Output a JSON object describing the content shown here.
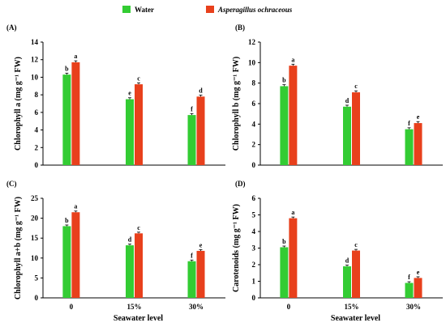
{
  "legend": [
    {
      "name": "Water",
      "color": "#33cc33",
      "italic": false
    },
    {
      "name": "Asperagillus  ochraceous",
      "color": "#e8401c",
      "italic": true
    }
  ],
  "chart_data": [
    {
      "type": "bar",
      "panel": "(A)",
      "ylabel": "Chlorophyll a (mg g⁻¹ FW)",
      "xlabel": "",
      "categories": [
        "0",
        "15%",
        "30%"
      ],
      "ylim": [
        0,
        14
      ],
      "yticks": [
        0,
        2,
        4,
        6,
        8,
        10,
        12,
        14
      ],
      "show_xticklabels": false,
      "series": [
        {
          "name": "Water",
          "values": [
            10.3,
            7.5,
            5.7
          ],
          "labels": [
            "b",
            "e",
            "f"
          ]
        },
        {
          "name": "Asperagillus  ochraceous",
          "values": [
            11.7,
            9.2,
            7.8
          ],
          "labels": [
            "a",
            "c",
            "d"
          ]
        }
      ]
    },
    {
      "type": "bar",
      "panel": "(B)",
      "ylabel": "Chlorophyll b (mg g⁻¹ FW)",
      "xlabel": "",
      "categories": [
        "0",
        "15%",
        "30%"
      ],
      "ylim": [
        0,
        12
      ],
      "yticks": [
        0,
        2,
        4,
        6,
        8,
        10,
        12
      ],
      "show_xticklabels": false,
      "series": [
        {
          "name": "Water",
          "values": [
            7.7,
            5.7,
            3.5
          ],
          "labels": [
            "b",
            "d",
            "f"
          ]
        },
        {
          "name": "Asperagillus  ochraceous",
          "values": [
            9.7,
            7.1,
            4.1
          ],
          "labels": [
            "a",
            "c",
            "e"
          ]
        }
      ]
    },
    {
      "type": "bar",
      "panel": "(C)",
      "ylabel": "Chlorophyll a+b (mg g⁻¹ FW)",
      "xlabel": "Seawater level",
      "categories": [
        "0",
        "15%",
        "30%"
      ],
      "ylim": [
        0,
        25
      ],
      "yticks": [
        0,
        5,
        10,
        15,
        20,
        25
      ],
      "show_xticklabels": true,
      "series": [
        {
          "name": "Water",
          "values": [
            18.0,
            13.2,
            9.2
          ],
          "labels": [
            "b",
            "d",
            "f"
          ]
        },
        {
          "name": "Asperagillus  ochraceous",
          "values": [
            21.5,
            16.2,
            11.8
          ],
          "labels": [
            "a",
            "c",
            "e"
          ]
        }
      ]
    },
    {
      "type": "bar",
      "panel": "(D)",
      "ylabel": "Carotenoids (mg g⁻¹ FW)",
      "xlabel": "Seawater level",
      "categories": [
        "0",
        "15%",
        "30%"
      ],
      "ylim": [
        0,
        6
      ],
      "yticks": [
        0,
        1,
        2,
        3,
        4,
        5,
        6
      ],
      "show_xticklabels": true,
      "series": [
        {
          "name": "Water",
          "values": [
            3.05,
            1.9,
            0.9
          ],
          "labels": [
            "b",
            "d",
            "f"
          ]
        },
        {
          "name": "Asperagillus  ochraceous",
          "values": [
            4.8,
            2.85,
            1.2
          ],
          "labels": [
            "a",
            "c",
            "e"
          ]
        }
      ]
    }
  ]
}
